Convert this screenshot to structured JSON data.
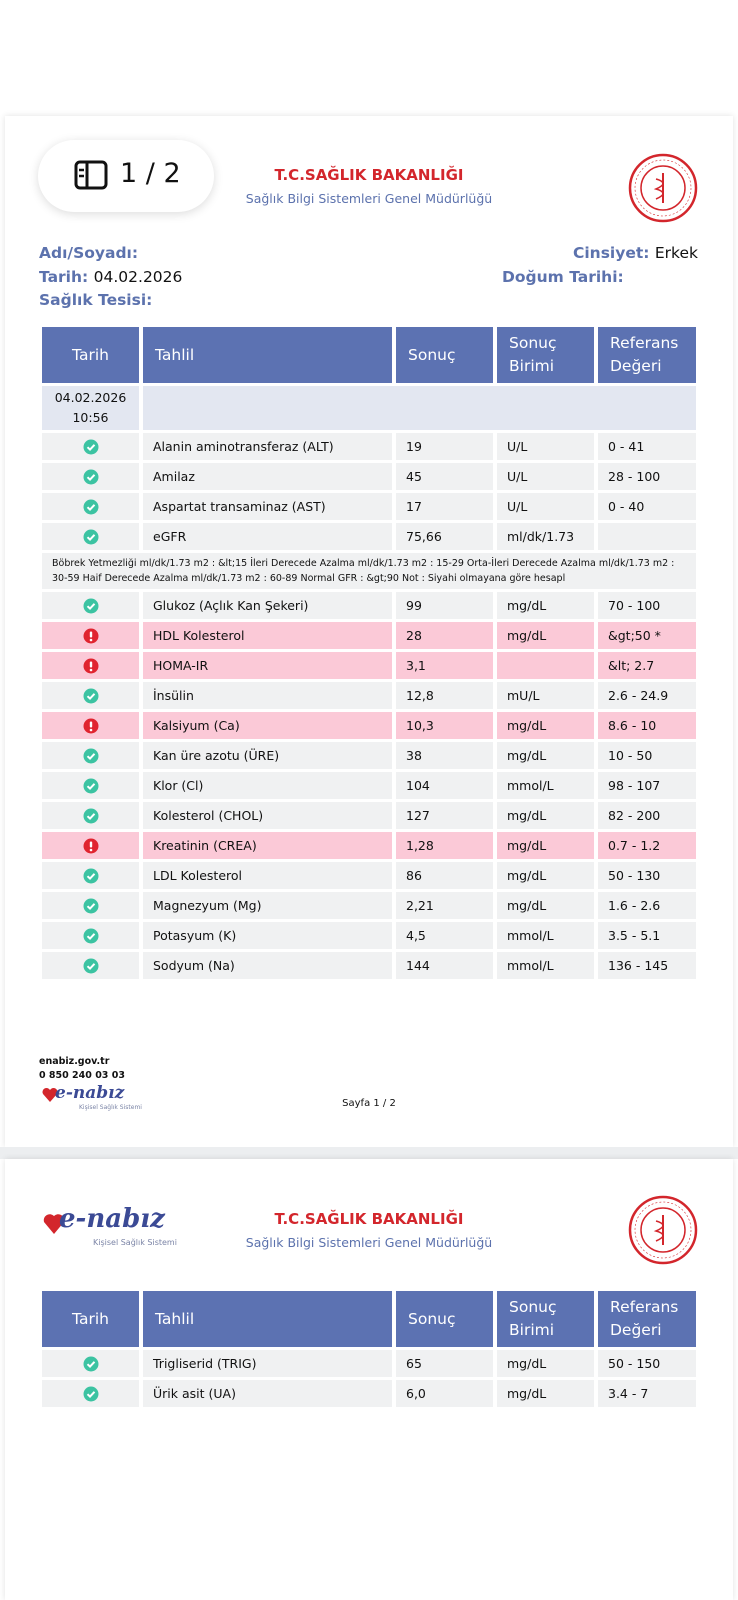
{
  "viewer": {
    "page_indicator": "1 / 2"
  },
  "pages": [
    {
      "header": {
        "title": "T.C.SAĞLIK BAKANLIĞI",
        "subtitle": "Sağlık Bilgi Sistemleri Genel Müdürlüğü"
      },
      "patient": {
        "name_label": "Adı/Soyadı:",
        "gender_label": "Cinsiyet:",
        "gender": "Erkek",
        "date_label": "Tarih:",
        "date": "04.02.2026",
        "birth_label": "Doğum Tarihi:",
        "facility_label": "Sağlık Tesisi:"
      },
      "table": {
        "columns": [
          "Tarih",
          "Tahlil",
          "Sonuç",
          "Sonuç Birimi",
          "Referans Değeri"
        ],
        "date_row": {
          "date": "04.02.2026",
          "time": "10:56"
        },
        "rows": [
          {
            "test": "Alanin aminotransferaz (ALT)",
            "result": "19",
            "unit": "U/L",
            "reference": "0 - 41",
            "abnormal": false
          },
          {
            "test": "Amilaz",
            "result": "45",
            "unit": "U/L",
            "reference": "28 - 100",
            "abnormal": false
          },
          {
            "test": "Aspartat transaminaz (AST)",
            "result": "17",
            "unit": "U/L",
            "reference": "0 - 40",
            "abnormal": false
          },
          {
            "test": "eGFR",
            "result": "75,66",
            "unit": "ml/dk/1.73",
            "reference": null,
            "abnormal": false
          },
          {
            "note": "Böbrek Yetmezliği ml/dk/1.73 m2 : &lt;15 İleri Derecede Azalma ml/dk/1.73 m2 : 15-29 Orta-İleri Derecede Azalma ml/dk/1.73 m2 : 30-59 Haif Derecede Azalma ml/dk/1.73 m2 : 60-89 Normal GFR : &gt;90 Not : Siyahi olmayana göre hesapl"
          },
          {
            "test": "Glukoz (Açlık Kan Şekeri)",
            "result": "99",
            "unit": "mg/dL",
            "reference": "70 - 100",
            "abnormal": false
          },
          {
            "test": "HDL Kolesterol",
            "result": "28",
            "unit": "mg/dL",
            "reference": "&gt;50 *",
            "abnormal": true
          },
          {
            "test": "HOMA-IR",
            "result": "3,1",
            "unit": null,
            "reference": "&lt; 2.7",
            "abnormal": true
          },
          {
            "test": "İnsülin",
            "result": "12,8",
            "unit": "mU/L",
            "reference": "2.6 - 24.9",
            "abnormal": false
          },
          {
            "test": "Kalsiyum (Ca)",
            "result": "10,3",
            "unit": "mg/dL",
            "reference": "8.6 - 10",
            "abnormal": true
          },
          {
            "test": "Kan üre azotu (ÜRE)",
            "result": "38",
            "unit": "mg/dL",
            "reference": "10 - 50",
            "abnormal": false
          },
          {
            "test": "Klor (Cl)",
            "result": "104",
            "unit": "mmol/L",
            "reference": "98 - 107",
            "abnormal": false
          },
          {
            "test": "Kolesterol (CHOL)",
            "result": "127",
            "unit": "mg/dL",
            "reference": "82 - 200",
            "abnormal": false
          },
          {
            "test": "Kreatinin (CREA)",
            "result": "1,28",
            "unit": "mg/dL",
            "reference": "0.7 - 1.2",
            "abnormal": true
          },
          {
            "test": "LDL Kolesterol",
            "result": "86",
            "unit": "mg/dL",
            "reference": "50 - 130",
            "abnormal": false
          },
          {
            "test": "Magnezyum (Mg)",
            "result": "2,21",
            "unit": "mg/dL",
            "reference": "1.6 - 2.6",
            "abnormal": false
          },
          {
            "test": "Potasyum (K)",
            "result": "4,5",
            "unit": "mmol/L",
            "reference": "3.5 - 5.1",
            "abnormal": false
          },
          {
            "test": "Sodyum (Na)",
            "result": "144",
            "unit": "mmol/L",
            "reference": "136 - 145",
            "abnormal": false
          }
        ]
      },
      "footer": {
        "site": "enabiz.gov.tr",
        "phone": "0 850 240 03 03",
        "logo": "e-nabız",
        "logo_tagline": "Kişisel Sağlık Sistemi",
        "page_label": "Sayfa 1 / 2"
      }
    },
    {
      "logo": "e-nabız",
      "logo_tagline": "Kişisel Sağlık Sistemi",
      "header": {
        "title": "T.C.SAĞLIK BAKANLIĞI",
        "subtitle": "Sağlık Bilgi Sistemleri Genel Müdürlüğü"
      },
      "table": {
        "columns": [
          "Tarih",
          "Tahlil",
          "Sonuç",
          "Sonuç Birimi",
          "Referans Değeri"
        ],
        "rows": [
          {
            "test": "Trigliserid (TRIG)",
            "result": "65",
            "unit": "mg/dL",
            "reference": "50 - 150",
            "abnormal": false
          },
          {
            "test": "Ürik asit (UA)",
            "result": "6,0",
            "unit": "mg/dL",
            "reference": "3.4 - 7",
            "abnormal": false
          }
        ]
      }
    }
  ]
}
